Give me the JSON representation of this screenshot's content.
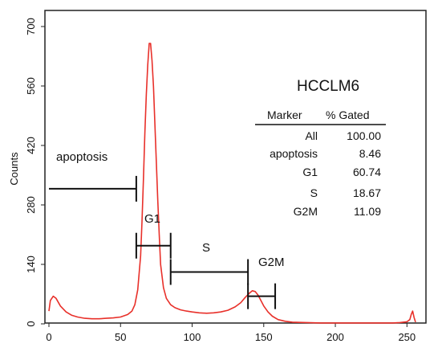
{
  "chart_data": {
    "type": "line",
    "title": "HCCLM6",
    "xlabel": "",
    "ylabel": "Counts",
    "xlim": [
      0,
      256
    ],
    "ylim": [
      0,
      700
    ],
    "x_ticks": [
      0,
      50,
      100,
      150,
      200,
      250
    ],
    "y_ticks": [
      0,
      140,
      280,
      420,
      560,
      700
    ],
    "grid": false,
    "series": [
      {
        "color": "#e8302a",
        "x": [
          0,
          1,
          3,
          5,
          8,
          12,
          16,
          20,
          25,
          30,
          35,
          40,
          45,
          50,
          55,
          58,
          60,
          62,
          64,
          65,
          66,
          67,
          68,
          69,
          70,
          71,
          72,
          73,
          74,
          75,
          76,
          77,
          78,
          80,
          82,
          85,
          88,
          92,
          96,
          100,
          105,
          110,
          115,
          120,
          125,
          130,
          134,
          137,
          140,
          142,
          144,
          146,
          148,
          150,
          153,
          156,
          160,
          165,
          170,
          180,
          190,
          200,
          210,
          220,
          230,
          240,
          245,
          250,
          252,
          253,
          254,
          255,
          256
        ],
        "y": [
          30,
          55,
          65,
          60,
          42,
          28,
          20,
          16,
          13,
          12,
          12,
          13,
          14,
          16,
          22,
          30,
          45,
          80,
          160,
          240,
          340,
          450,
          540,
          610,
          660,
          660,
          620,
          560,
          470,
          380,
          290,
          210,
          140,
          85,
          60,
          45,
          38,
          33,
          30,
          28,
          26,
          25,
          26,
          28,
          32,
          40,
          50,
          62,
          72,
          78,
          76,
          68,
          55,
          42,
          28,
          18,
          10,
          6,
          4,
          3,
          2,
          2,
          2,
          2,
          2,
          2,
          3,
          5,
          10,
          22,
          30,
          15,
          4
        ]
      }
    ],
    "gates": [
      {
        "name": "apoptosis",
        "x": [
          0,
          61
        ],
        "level": 318
      },
      {
        "name": "G1",
        "x": [
          61,
          85
        ],
        "level": 184
      },
      {
        "name": "S",
        "x": [
          85,
          139
        ],
        "level": 122
      },
      {
        "name": "G2M",
        "x": [
          139,
          158
        ],
        "level": 65
      }
    ],
    "gate_table": {
      "headers": [
        "Marker",
        "% Gated"
      ],
      "rows": [
        {
          "marker": "All",
          "pct": "100.00"
        },
        {
          "marker": "apoptosis",
          "pct": "8.46"
        },
        {
          "marker": "G1",
          "pct": "60.74"
        },
        {
          "marker": "S",
          "pct": "18.67"
        },
        {
          "marker": "G2M",
          "pct": "11.09"
        }
      ]
    }
  }
}
